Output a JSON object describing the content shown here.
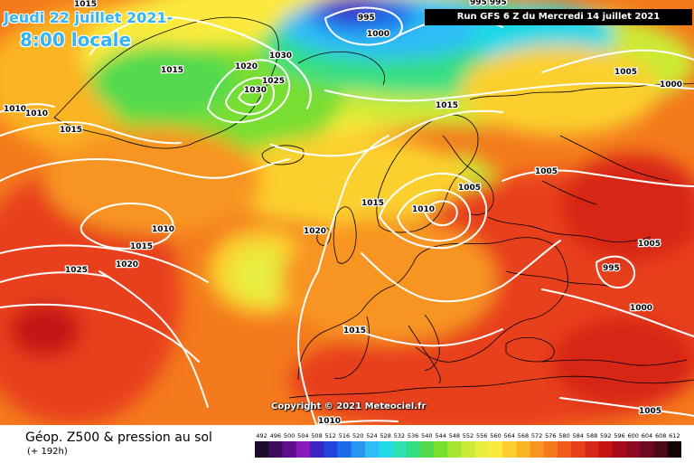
{
  "header": {
    "date": "Jeudi 22 juillet 2021-",
    "time": "8:00 locale",
    "run": "Run GFS 6 Z du Mercredi 14 juillet 2021"
  },
  "copyright": "Copyright © 2021 Meteociel.fr",
  "legend": {
    "title": "Géop. Z500 & pression au sol",
    "subtitle": "(+ 192h)",
    "values": [
      492,
      496,
      500,
      504,
      508,
      512,
      516,
      520,
      524,
      528,
      532,
      536,
      540,
      544,
      548,
      552,
      556,
      560,
      564,
      568,
      572,
      576,
      580,
      584,
      588,
      592,
      596,
      600,
      604,
      608,
      612
    ],
    "colors": [
      "#1c0c2c",
      "#3d0a5e",
      "#5f0c8e",
      "#8a19b8",
      "#3a24c2",
      "#1f45dc",
      "#1e6be8",
      "#2a95f0",
      "#2ebdf5",
      "#1fd8e8",
      "#2ee0b5",
      "#35de84",
      "#52da4e",
      "#79de30",
      "#a4e631",
      "#cdea35",
      "#e8ee3f",
      "#fbea3e",
      "#fbd02e",
      "#fbb424",
      "#f89521",
      "#f47a1d",
      "#f05a1c",
      "#e83f1b",
      "#d82818",
      "#c41414",
      "#a80c1c",
      "#8c0a22",
      "#6e0a20",
      "#4e0a18",
      "#160506"
    ]
  },
  "isobar_labels": [
    {
      "text": "1015"
    },
    {
      "text": "995"
    },
    {
      "text": "1000"
    },
    {
      "text": "995 995"
    },
    {
      "text": "1030"
    },
    {
      "text": "1020"
    },
    {
      "text": "1025"
    },
    {
      "text": "1030"
    },
    {
      "text": "1015"
    },
    {
      "text": "1010"
    },
    {
      "text": "1010"
    },
    {
      "text": "1015"
    },
    {
      "text": "1015"
    },
    {
      "text": "1005"
    },
    {
      "text": "1000"
    },
    {
      "text": "1005"
    },
    {
      "text": "1005"
    },
    {
      "text": "1015"
    },
    {
      "text": "1010"
    },
    {
      "text": "1010"
    },
    {
      "text": "1020"
    },
    {
      "text": "1015"
    },
    {
      "text": "1025"
    },
    {
      "text": "1020"
    },
    {
      "text": "1005"
    },
    {
      "text": "995"
    },
    {
      "text": "1000"
    },
    {
      "text": "1015"
    },
    {
      "text": "1005"
    },
    {
      "text": "1010"
    }
  ]
}
